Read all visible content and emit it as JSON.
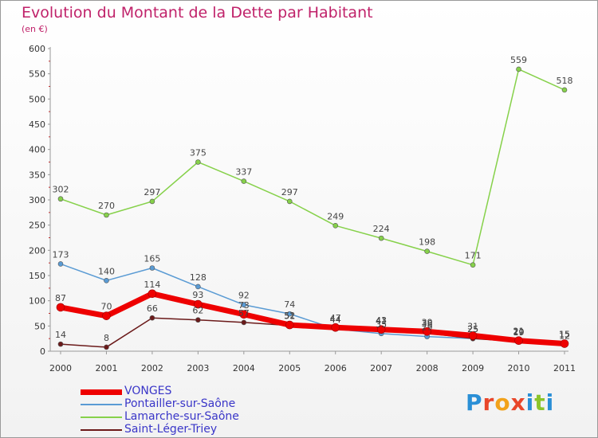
{
  "title": "Evolution du Montant de la Dette par Habitant",
  "unit_label": "(en €)",
  "logo": {
    "letters": [
      "P",
      "r",
      "o",
      "x",
      "i",
      "t",
      "i"
    ],
    "colors": [
      "#2a8fd6",
      "#e8462a",
      "#f2a21a",
      "#e8462a",
      "#2a8fd6",
      "#8bc42a",
      "#2a8fd6"
    ]
  },
  "chart_data": {
    "type": "line",
    "x": [
      "2000",
      "2001",
      "2002",
      "2003",
      "2004",
      "2005",
      "2006",
      "2007",
      "2008",
      "2009",
      "2010",
      "2011"
    ],
    "ylim": [
      0,
      600
    ],
    "y_ticks": [
      "0",
      "50",
      "100",
      "150",
      "200",
      "250",
      "300",
      "350",
      "400",
      "450",
      "500",
      "550",
      "600"
    ],
    "grid": false,
    "legend_position": "bottom-left",
    "series": [
      {
        "name": "VONGES",
        "color": "#ee0000",
        "values": [
          87,
          70,
          114,
          93,
          73,
          52,
          47,
          43,
          39,
          31,
          21,
          15
        ],
        "labels": [
          "87",
          "70",
          "114",
          "93",
          "73",
          "52",
          "47",
          "43",
          "39",
          "31",
          "21",
          "15"
        ]
      },
      {
        "name": "Pontailler-sur-Saône",
        "color": "#5a9bd4",
        "values": [
          173,
          140,
          165,
          128,
          92,
          74,
          44,
          35,
          29,
          25,
          20,
          15
        ],
        "labels": [
          "173",
          "140",
          "165",
          "128",
          "92",
          "74",
          "44",
          "35",
          "29",
          "25",
          "20",
          "15"
        ]
      },
      {
        "name": "Lamarche-sur-Saône",
        "color": "#86d14a",
        "values": [
          302,
          270,
          297,
          375,
          337,
          297,
          249,
          224,
          198,
          171,
          559,
          518
        ],
        "labels": [
          "302",
          "270",
          "297",
          "375",
          "337",
          "297",
          "249",
          "224",
          "198",
          "171",
          "559",
          "518"
        ]
      },
      {
        "name": "Saint-Léger-Triey",
        "color": "#6b1a1a",
        "values": [
          14,
          8,
          66,
          62,
          57,
          51,
          44,
          41,
          36,
          25,
          19,
          12
        ],
        "labels": [
          "14",
          "8",
          "66",
          "62",
          "57",
          "51",
          "44",
          "41",
          "36",
          "25",
          "19",
          "12"
        ]
      }
    ]
  }
}
